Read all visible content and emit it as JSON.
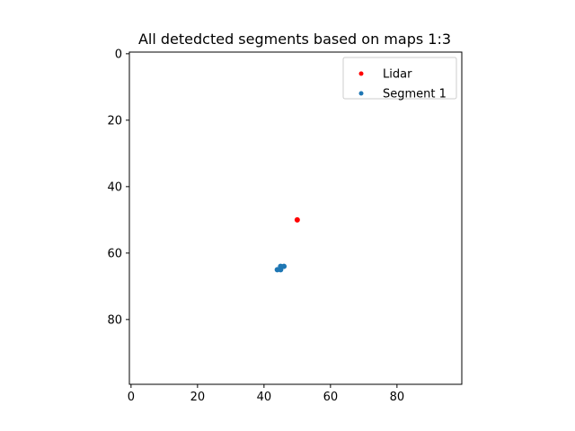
{
  "chart_data": {
    "type": "scatter",
    "title": "All detedcted segments based on maps 1:3",
    "xlabel": "",
    "ylabel": "",
    "xlim": [
      -0.5,
      99.5
    ],
    "ylim": [
      99.5,
      -0.5
    ],
    "y_inverted": true,
    "grid": false,
    "x_ticks": [
      0,
      20,
      40,
      60,
      80
    ],
    "y_ticks": [
      0,
      20,
      40,
      60,
      80
    ],
    "x_tick_labels": [
      "0",
      "20",
      "40",
      "60",
      "80"
    ],
    "y_tick_labels": [
      "0",
      "20",
      "40",
      "60",
      "80"
    ],
    "legend_position": "top-right",
    "series": [
      {
        "name": "Lidar",
        "color": "#ff0000",
        "points": [
          [
            50,
            50
          ]
        ]
      },
      {
        "name": "Segment 1",
        "color": "#1f77b4",
        "points": [
          [
            44,
            65
          ],
          [
            45,
            65
          ],
          [
            45,
            64
          ],
          [
            46,
            64
          ]
        ]
      }
    ]
  }
}
